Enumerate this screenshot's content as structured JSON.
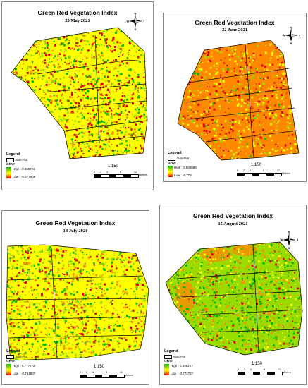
{
  "colors": {
    "high": "#00b800",
    "lightgreen": "#9bdc00",
    "yellow": "#ffff00",
    "orange": "#ff8800",
    "low": "#e00000",
    "outline": "#000000"
  },
  "common": {
    "legend_title": "Legend",
    "subplot_label": "Sub-Plot",
    "index_label": "GRVI",
    "scale_text": "1:150",
    "scale_ticks": [
      "0",
      "2",
      "4",
      "8",
      "12"
    ],
    "scale_unit": "Meters",
    "north_letters": {
      "n": "N",
      "s": "S",
      "e": "E",
      "w": "W"
    }
  },
  "panels": [
    {
      "title": "Green Red Vegetation Index",
      "date": "25 May 2021",
      "high": "High : 0.860784",
      "low": "Low : -0.577908"
    },
    {
      "title": "Green Red Vegetation Index",
      "date": "22 June 2021",
      "high": "High : 0.888889",
      "low": "Low : -0.775"
    },
    {
      "title": "Green Red Vegetation Index",
      "date": "14 July 2021",
      "high": "High : 0.777778",
      "low": "Low : -0.761807"
    },
    {
      "title": "Green Red Vegetation Index",
      "date": "15 August 2021",
      "high": "High : 0.596257",
      "low": "Low : -0.772727"
    }
  ]
}
